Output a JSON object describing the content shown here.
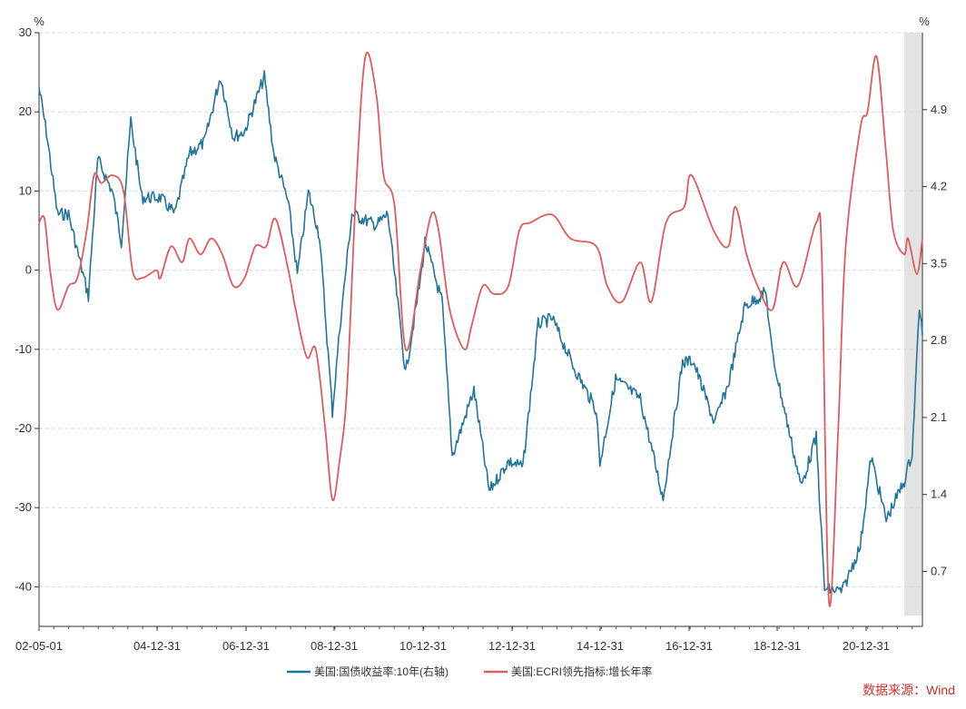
{
  "chart_data": {
    "type": "line",
    "title": "",
    "left_axis": {
      "unit": "%",
      "ylim": [
        -45,
        30
      ],
      "ticks": [
        30,
        20,
        10,
        0,
        -10,
        -20,
        -30,
        -40
      ]
    },
    "right_axis": {
      "unit": "%",
      "ylim": [
        0.2,
        5.6
      ],
      "ticks": [
        "4.9",
        "4.2",
        "3.5",
        "2.8",
        "2.1",
        "1.4",
        "0.7"
      ]
    },
    "x_axis": {
      "labels": [
        "02-05-01",
        "04-12-31",
        "06-12-31",
        "08-12-31",
        "10-12-31",
        "12-12-31",
        "14-12-31",
        "16-12-31",
        "18-12-31",
        "20-12-31"
      ],
      "range": [
        "2002-05-01",
        "2022-05-31"
      ]
    },
    "recession_shading": {
      "start": "2021-12-31",
      "end": "2022-05-31",
      "color": "#e3e3e3"
    },
    "grid": true,
    "legend_position": "bottom",
    "series": [
      {
        "name": "美国:国债收益率:10年(右轴)",
        "axis": "right",
        "color": "#21759b",
        "points": [
          [
            "2002-05-01",
            5.1
          ],
          [
            "2002-07-01",
            4.7
          ],
          [
            "2002-10-01",
            3.95
          ],
          [
            "2003-01-01",
            3.95
          ],
          [
            "2003-06-15",
            3.2
          ],
          [
            "2003-09-01",
            4.45
          ],
          [
            "2004-01-01",
            4.15
          ],
          [
            "2004-03-15",
            3.7
          ],
          [
            "2004-06-01",
            4.8
          ],
          [
            "2004-09-01",
            4.1
          ],
          [
            "2005-02-01",
            4.1
          ],
          [
            "2005-06-01",
            3.95
          ],
          [
            "2005-10-01",
            4.5
          ],
          [
            "2006-02-01",
            4.6
          ],
          [
            "2006-06-15",
            5.2
          ],
          [
            "2006-10-01",
            4.65
          ],
          [
            "2007-01-01",
            4.7
          ],
          [
            "2007-06-15",
            5.2
          ],
          [
            "2007-09-01",
            4.5
          ],
          [
            "2007-12-31",
            4.05
          ],
          [
            "2008-03-15",
            3.4
          ],
          [
            "2008-06-15",
            4.15
          ],
          [
            "2008-09-15",
            3.75
          ],
          [
            "2008-12-31",
            2.15
          ],
          [
            "2009-03-01",
            2.9
          ],
          [
            "2009-06-10",
            3.95
          ],
          [
            "2009-12-31",
            3.85
          ],
          [
            "2010-04-05",
            3.95
          ],
          [
            "2010-08-31",
            2.5
          ],
          [
            "2010-12-31",
            3.35
          ],
          [
            "2011-02-08",
            3.7
          ],
          [
            "2011-06-30",
            3.15
          ],
          [
            "2011-09-22",
            1.75
          ],
          [
            "2012-03-20",
            2.35
          ],
          [
            "2012-07-25",
            1.43
          ],
          [
            "2012-12-31",
            1.7
          ],
          [
            "2013-05-01",
            1.65
          ],
          [
            "2013-09-05",
            2.95
          ],
          [
            "2013-12-31",
            3.0
          ],
          [
            "2014-06-30",
            2.55
          ],
          [
            "2014-12-31",
            2.17
          ],
          [
            "2015-01-30",
            1.68
          ],
          [
            "2015-06-10",
            2.45
          ],
          [
            "2015-12-31",
            2.27
          ],
          [
            "2016-07-08",
            1.36
          ],
          [
            "2016-12-16",
            2.6
          ],
          [
            "2017-03-13",
            2.62
          ],
          [
            "2017-09-07",
            2.05
          ],
          [
            "2017-12-31",
            2.4
          ],
          [
            "2018-05-17",
            3.11
          ],
          [
            "2018-11-08",
            3.24
          ],
          [
            "2018-12-31",
            2.68
          ],
          [
            "2019-08-28",
            1.47
          ],
          [
            "2019-12-31",
            1.92
          ],
          [
            "2020-03-09",
            0.54
          ],
          [
            "2020-08-04",
            0.52
          ],
          [
            "2020-12-31",
            0.93
          ],
          [
            "2021-03-31",
            1.74
          ],
          [
            "2021-08-03",
            1.17
          ],
          [
            "2021-12-31",
            1.52
          ],
          [
            "2022-03-07",
            1.78
          ],
          [
            "2022-05-06",
            3.12
          ],
          [
            "2022-05-31",
            2.85
          ]
        ]
      },
      {
        "name": "美国:ECRI领先指标:增长年率",
        "axis": "left",
        "color": "#e05b5b",
        "points": [
          [
            "2002-05-01",
            6.0
          ],
          [
            "2002-06-15",
            6.5
          ],
          [
            "2002-08-01",
            0.0
          ],
          [
            "2002-10-01",
            -5.0
          ],
          [
            "2003-01-01",
            -2.0
          ],
          [
            "2003-03-15",
            -1.0
          ],
          [
            "2003-06-01",
            5.0
          ],
          [
            "2003-08-01",
            12.0
          ],
          [
            "2003-10-01",
            11.0
          ],
          [
            "2004-01-01",
            12.0
          ],
          [
            "2004-04-01",
            10.0
          ],
          [
            "2004-06-15",
            0.0
          ],
          [
            "2004-09-01",
            -1.0
          ],
          [
            "2004-12-31",
            0.0
          ],
          [
            "2005-02-01",
            -1.0
          ],
          [
            "2005-05-01",
            3.0
          ],
          [
            "2005-08-01",
            1.0
          ],
          [
            "2005-10-01",
            4.0
          ],
          [
            "2006-01-01",
            2.0
          ],
          [
            "2006-04-01",
            4.0
          ],
          [
            "2006-07-01",
            2.0
          ],
          [
            "2006-10-01",
            -2.0
          ],
          [
            "2007-01-01",
            -1.0
          ],
          [
            "2007-04-01",
            3.0
          ],
          [
            "2007-07-01",
            3.0
          ],
          [
            "2007-09-15",
            6.5
          ],
          [
            "2007-12-31",
            0.0
          ],
          [
            "2008-03-01",
            -5.0
          ],
          [
            "2008-06-01",
            -11.0
          ],
          [
            "2008-08-15",
            -10.0
          ],
          [
            "2008-11-01",
            -20.0
          ],
          [
            "2008-12-31",
            -29.0
          ],
          [
            "2009-03-01",
            -24.0
          ],
          [
            "2009-05-01",
            -15.0
          ],
          [
            "2009-07-15",
            10.0
          ],
          [
            "2009-10-01",
            27.0
          ],
          [
            "2010-01-01",
            22.0
          ],
          [
            "2010-03-01",
            12.0
          ],
          [
            "2010-06-01",
            8.0
          ],
          [
            "2010-09-01",
            -10.0
          ],
          [
            "2010-12-31",
            0.0
          ],
          [
            "2011-04-01",
            7.0
          ],
          [
            "2011-06-01",
            5.0
          ],
          [
            "2011-09-01",
            -5.0
          ],
          [
            "2011-12-31",
            -10.0
          ],
          [
            "2012-03-01",
            -7.0
          ],
          [
            "2012-06-01",
            -2.0
          ],
          [
            "2012-09-01",
            -3.0
          ],
          [
            "2012-12-31",
            -2.0
          ],
          [
            "2013-04-01",
            5.0
          ],
          [
            "2013-07-01",
            6.0
          ],
          [
            "2013-12-31",
            7.0
          ],
          [
            "2014-06-01",
            4.0
          ],
          [
            "2014-12-31",
            3.0
          ],
          [
            "2015-04-01",
            -2.0
          ],
          [
            "2015-08-01",
            -4.0
          ],
          [
            "2015-12-31",
            1.0
          ],
          [
            "2016-04-01",
            -4.0
          ],
          [
            "2016-08-01",
            6.0
          ],
          [
            "2016-12-31",
            8.0
          ],
          [
            "2017-03-01",
            12.0
          ],
          [
            "2017-09-01",
            5.0
          ],
          [
            "2017-12-31",
            3.0
          ],
          [
            "2018-03-01",
            8.0
          ],
          [
            "2018-06-01",
            2.0
          ],
          [
            "2018-09-01",
            -2.0
          ],
          [
            "2018-12-31",
            -5.0
          ],
          [
            "2019-04-01",
            1.0
          ],
          [
            "2019-08-01",
            -2.0
          ],
          [
            "2019-12-31",
            6.0
          ],
          [
            "2020-02-15",
            2.0
          ],
          [
            "2020-04-15",
            -42.0
          ],
          [
            "2020-07-01",
            -20.0
          ],
          [
            "2020-09-01",
            3.0
          ],
          [
            "2021-01-01",
            18.0
          ],
          [
            "2021-03-01",
            20.0
          ],
          [
            "2021-05-15",
            27.0
          ],
          [
            "2021-08-01",
            15.0
          ],
          [
            "2021-10-01",
            5.0
          ],
          [
            "2021-12-31",
            2.0
          ],
          [
            "2022-02-01",
            4.0
          ],
          [
            "2022-04-15",
            -0.5
          ],
          [
            "2022-05-31",
            4.0
          ]
        ]
      }
    ]
  },
  "source": "数据来源：Wind"
}
